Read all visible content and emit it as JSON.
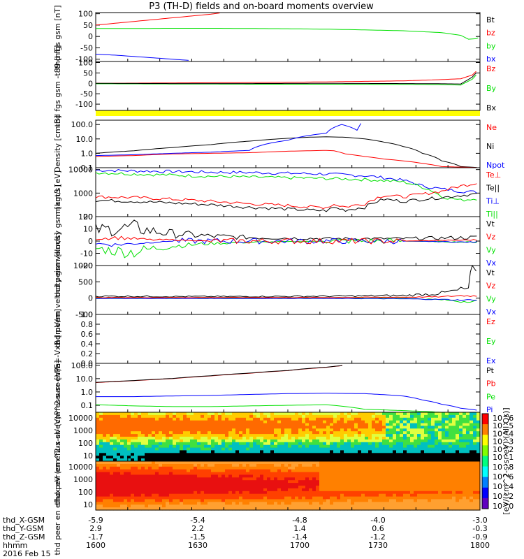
{
  "title": "P3 (TH-D) fields and on-board moments overview",
  "chart_data": [
    {
      "type": "line",
      "ylabel": "thd fgs gsm [nT]",
      "yticks": [
        "100",
        "50",
        "0",
        "-50",
        "-100"
      ],
      "legend": [
        {
          "label": "Bt",
          "color": "#000000"
        },
        {
          "label": "bz",
          "color": "#ff0000"
        },
        {
          "label": "by",
          "color": "#00e000"
        },
        {
          "label": "bx",
          "color": "#0000ff"
        }
      ],
      "ylim": [
        -110,
        105
      ],
      "series": [
        {
          "name": "bz",
          "color": "#ff0000",
          "x": [
            0,
            0.05,
            0.1,
            0.15,
            0.2,
            0.25,
            0.3,
            0.33
          ],
          "y": [
            50,
            58,
            66,
            74,
            82,
            90,
            98,
            105
          ]
        },
        {
          "name": "by",
          "color": "#00e000",
          "x": [
            0,
            0.1,
            0.2,
            0.3,
            0.4,
            0.5,
            0.6,
            0.7,
            0.8,
            0.9,
            0.95,
            0.97,
            0.99,
            1.0
          ],
          "y": [
            35,
            35,
            36,
            36,
            35,
            34,
            32,
            29,
            25,
            17,
            5,
            -12,
            -10,
            -2
          ]
        },
        {
          "name": "bx",
          "color": "#0000ff",
          "x": [
            0,
            0.05,
            0.1,
            0.15,
            0.2,
            0.25
          ],
          "y": [
            -78,
            -82,
            -88,
            -94,
            -100,
            -106
          ]
        }
      ]
    },
    {
      "type": "line",
      "ylabel": "thd fgs gsm -t89 [nT]",
      "yticks": [
        "100",
        "50",
        "0",
        "-50",
        "-100"
      ],
      "legend": [
        {
          "label": "Bz",
          "color": "#ff0000"
        },
        {
          "label": "By",
          "color": "#00e000"
        },
        {
          "label": "Bx",
          "color": "#000000"
        }
      ],
      "ylim": [
        -130,
        105
      ],
      "series": [
        {
          "name": "Bz",
          "color": "#ff0000",
          "x": [
            0,
            0.2,
            0.4,
            0.6,
            0.8,
            0.9,
            0.95,
            0.98,
            1.0
          ],
          "y": [
            0,
            2,
            4,
            7,
            12,
            18,
            22,
            40,
            75
          ]
        },
        {
          "name": "By",
          "color": "#00e000",
          "x": [
            0,
            0.2,
            0.4,
            0.6,
            0.8,
            0.9,
            0.95,
            0.98,
            1.0
          ],
          "y": [
            -2,
            -3,
            -4,
            -4,
            -5,
            -6,
            -8,
            20,
            60
          ]
        },
        {
          "name": "Bx",
          "color": "#000000",
          "x": [
            0,
            0.2,
            0.4,
            0.6,
            0.8,
            0.9,
            0.95,
            0.98,
            1.0
          ],
          "y": [
            0,
            -1,
            -1,
            0,
            -1,
            -2,
            -3,
            30,
            70
          ]
        }
      ]
    },
    {
      "type": "line",
      "ylabel": "Density [cm-3]",
      "scale": "log",
      "yticks": [
        "100.0",
        "10.0",
        "1.0",
        "0.1"
      ],
      "legend": [
        {
          "label": "Ne",
          "color": "#ff0000"
        },
        {
          "label": "Ni",
          "color": "#000000"
        },
        {
          "label": "Npot",
          "color": "#0000ff"
        }
      ],
      "ylim": [
        0.1,
        200
      ],
      "series": [
        {
          "name": "Ni",
          "color": "#000000",
          "x": [
            0,
            0.1,
            0.2,
            0.3,
            0.4,
            0.5,
            0.55,
            0.6,
            0.65,
            0.7,
            0.75,
            0.8,
            0.85,
            0.9,
            0.95,
            1.0
          ],
          "y": [
            1.0,
            1.5,
            2.5,
            4,
            7,
            11,
            13,
            14,
            13,
            10,
            6,
            3,
            1,
            0.3,
            0.12,
            0.1
          ]
        },
        {
          "name": "Ne",
          "color": "#ff0000",
          "x": [
            0,
            0.1,
            0.2,
            0.3,
            0.4,
            0.5,
            0.6,
            0.62,
            0.65,
            0.7,
            0.75,
            0.8,
            0.85,
            0.9,
            1.0
          ],
          "y": [
            0.6,
            0.7,
            0.9,
            1.0,
            1.1,
            1.4,
            1.6,
            1.5,
            0.9,
            0.6,
            0.4,
            0.3,
            0.2,
            0.12,
            0.1
          ]
        },
        {
          "name": "Npot",
          "color": "#0000ff",
          "x": [
            0,
            0.1,
            0.2,
            0.3,
            0.4,
            0.5,
            0.6,
            0.64,
            0.68,
            0.7
          ],
          "y": [
            0.7,
            0.8,
            1.0,
            1.2,
            1.6,
            8,
            25,
            100,
            40,
            200
          ]
        }
      ]
    },
    {
      "type": "line",
      "ylabel": "magt3 [eV]",
      "scale": "log",
      "yticks": [
        "10000",
        "1000",
        "100"
      ],
      "legend": [
        {
          "label": "Te⊥",
          "color": "#ff0000"
        },
        {
          "label": "Te||",
          "color": "#000000"
        },
        {
          "label": "Ti⊥",
          "color": "#0000ff"
        },
        {
          "label": "Ti||",
          "color": "#00e000"
        }
      ],
      "ylim": [
        100,
        12000
      ],
      "series": [
        {
          "name": "Ti⊥",
          "color": "#0000ff",
          "x": [
            0,
            0.1,
            0.2,
            0.3,
            0.4,
            0.5,
            0.6,
            0.7,
            0.75,
            0.8,
            0.85,
            0.9,
            0.95,
            1.0
          ],
          "y": [
            9500,
            8800,
            8300,
            7800,
            7500,
            7000,
            6500,
            5500,
            4500,
            3500,
            2000,
            1500,
            1200,
            1100
          ]
        },
        {
          "name": "Ti||",
          "color": "#00e000",
          "x": [
            0,
            0.1,
            0.2,
            0.3,
            0.4,
            0.5,
            0.6,
            0.7,
            0.75,
            0.8,
            0.85,
            0.9,
            0.95,
            1.0
          ],
          "y": [
            7500,
            6500,
            5800,
            5200,
            4800,
            4500,
            4200,
            3800,
            3400,
            3000,
            1800,
            700,
            500,
            600
          ]
        },
        {
          "name": "Te⊥",
          "color": "#ff0000",
          "x": [
            0,
            0.1,
            0.2,
            0.3,
            0.4,
            0.5,
            0.55,
            0.6,
            0.62,
            0.65,
            0.7,
            0.75,
            0.8,
            0.85,
            0.9,
            0.95,
            1.0
          ],
          "y": [
            700,
            650,
            550,
            450,
            350,
            300,
            260,
            250,
            330,
            260,
            350,
            800,
            700,
            900,
            1200,
            2000,
            2800
          ]
        },
        {
          "name": "Te||",
          "color": "#000000",
          "x": [
            0,
            0.1,
            0.2,
            0.3,
            0.4,
            0.5,
            0.55,
            0.6,
            0.62,
            0.65,
            0.7,
            0.75,
            0.8,
            0.85,
            0.9,
            0.95,
            1.0
          ],
          "y": [
            500,
            450,
            380,
            320,
            250,
            210,
            190,
            180,
            240,
            190,
            250,
            550,
            450,
            550,
            650,
            800,
            950
          ]
        }
      ]
    },
    {
      "type": "line",
      "ylabel": "thd peim velocity gsm [km/s]",
      "yticks": [
        "20",
        "10",
        "0",
        "-10",
        "-20"
      ],
      "legend": [
        {
          "label": "Vt",
          "color": "#000000"
        },
        {
          "label": "Vz",
          "color": "#ff0000"
        },
        {
          "label": "Vy",
          "color": "#00e000"
        },
        {
          "label": "Vx",
          "color": "#0000ff"
        }
      ],
      "ylim": [
        -20,
        20
      ],
      "series": [
        {
          "name": "Vt",
          "color": "#000000",
          "x": [
            0,
            0.05,
            0.1,
            0.15,
            0.2,
            0.3,
            0.4,
            0.6,
            0.8,
            1.0
          ],
          "y": [
            9,
            10,
            11,
            8,
            6,
            4,
            3,
            2,
            2,
            3
          ]
        },
        {
          "name": "Vy",
          "color": "#00e000",
          "x": [
            0,
            0.05,
            0.1,
            0.15,
            0.2,
            0.3,
            0.4,
            0.6,
            0.8,
            1.0
          ],
          "y": [
            -6,
            -8,
            -9,
            -6,
            -4,
            -2,
            -1,
            0,
            0,
            -1
          ]
        },
        {
          "name": "Vx",
          "color": "#0000ff",
          "x": [
            0,
            0.05,
            0.1,
            0.15,
            0.2,
            0.3,
            0.4,
            0.6,
            0.8,
            1.0
          ],
          "y": [
            -2,
            -3,
            -2,
            -1,
            0,
            0,
            0,
            0,
            0,
            -1
          ]
        },
        {
          "name": "Vz",
          "color": "#ff0000",
          "x": [
            0,
            0.05,
            0.1,
            0.15,
            0.2,
            0.3,
            0.4,
            0.6,
            0.8,
            1.0
          ],
          "y": [
            2,
            3,
            2,
            1,
            1,
            0,
            0,
            0,
            0,
            1
          ]
        }
      ]
    },
    {
      "type": "line",
      "ylabel": "thd peem velocity gsm [km/s]",
      "yticks": [
        "1000",
        "500",
        "0",
        "-500"
      ],
      "legend": [
        {
          "label": "Vt",
          "color": "#000000"
        },
        {
          "label": "Vz",
          "color": "#ff0000"
        },
        {
          "label": "Vy",
          "color": "#00e000"
        },
        {
          "label": "Vx",
          "color": "#0000ff"
        }
      ],
      "ylim": [
        -500,
        1000
      ],
      "series": [
        {
          "name": "Vt",
          "color": "#000000",
          "x": [
            0,
            0.2,
            0.4,
            0.6,
            0.8,
            0.9,
            0.95,
            0.97,
            0.98,
            1.0
          ],
          "y": [
            60,
            50,
            50,
            60,
            80,
            150,
            250,
            300,
            900,
            300
          ]
        },
        {
          "name": "Vy",
          "color": "#00e000",
          "x": [
            0,
            0.2,
            0.4,
            0.6,
            0.8,
            0.9,
            0.95,
            1.0
          ],
          "y": [
            10,
            10,
            0,
            0,
            0,
            -50,
            -100,
            -80
          ]
        },
        {
          "name": "Vz",
          "color": "#ff0000",
          "x": [
            0,
            0.2,
            0.4,
            0.6,
            0.8,
            0.9,
            0.95,
            1.0
          ],
          "y": [
            20,
            20,
            20,
            20,
            30,
            40,
            80,
            60
          ]
        },
        {
          "name": "Vx",
          "color": "#0000ff",
          "x": [
            0,
            0.2,
            0.4,
            0.6,
            0.8,
            0.9,
            0.95,
            1.0
          ],
          "y": [
            -10,
            -10,
            -10,
            -10,
            -20,
            -40,
            -60,
            -50
          ]
        }
      ]
    },
    {
      "type": "line",
      "ylabel": "E=-VxB [mV/m]",
      "yticks": [
        "1.0",
        "0.8",
        "0.6",
        "0.4",
        "0.2",
        "0.0"
      ],
      "legend": [
        {
          "label": "Ez",
          "color": "#ff0000"
        },
        {
          "label": "Ey",
          "color": "#00e000"
        },
        {
          "label": "Ex",
          "color": "#0000ff"
        }
      ],
      "ylim": [
        0,
        1
      ],
      "series": []
    },
    {
      "type": "line",
      "ylabel": "Pressure [nPa]",
      "scale": "log",
      "yticks": [
        "100.0",
        "10.0",
        "1.0",
        "0.1"
      ],
      "legend": [
        {
          "label": "Pt",
          "color": "#000000"
        },
        {
          "label": "Pb",
          "color": "#ff0000"
        },
        {
          "label": "Pe",
          "color": "#00e000"
        },
        {
          "label": "Pi",
          "color": "#0000ff"
        }
      ],
      "ylim": [
        0.03,
        140
      ],
      "series": [
        {
          "name": "Pb",
          "color": "#ff0000",
          "x": [
            0,
            0.1,
            0.2,
            0.3,
            0.4,
            0.5,
            0.6,
            0.65
          ],
          "y": [
            5,
            7,
            10,
            16,
            25,
            40,
            70,
            100
          ]
        },
        {
          "name": "Pt",
          "color": "#000000",
          "x": [
            0,
            0.1,
            0.2,
            0.3,
            0.4,
            0.5,
            0.6,
            0.65
          ],
          "y": [
            5.2,
            7.2,
            10.3,
            16.5,
            26,
            41,
            72,
            100
          ]
        },
        {
          "name": "Pi",
          "color": "#0000ff",
          "x": [
            0,
            0.1,
            0.2,
            0.3,
            0.4,
            0.5,
            0.6,
            0.7,
            0.8,
            0.85,
            0.9,
            0.95,
            1.0
          ],
          "y": [
            0.45,
            0.45,
            0.5,
            0.55,
            0.65,
            0.75,
            0.8,
            0.75,
            0.5,
            0.25,
            0.12,
            0.06,
            0.04
          ]
        },
        {
          "name": "Pe",
          "color": "#00e000",
          "x": [
            0,
            0.1,
            0.2,
            0.3,
            0.4,
            0.5,
            0.6,
            0.65,
            0.7,
            0.8,
            0.9,
            1.0
          ],
          "y": [
            0.11,
            0.09,
            0.08,
            0.08,
            0.09,
            0.1,
            0.11,
            0.08,
            0.05,
            0.04,
            0.03,
            0.03
          ]
        }
      ]
    },
    {
      "type": "heatmap",
      "ylabel": "thd peir en eflux eV (cm^2-s-sr-eV)",
      "yticks": [
        "10000",
        "1000",
        "100",
        "10"
      ],
      "colorbar_ticks": [
        "10^6",
        "10^5",
        "10^4",
        "10^3",
        "10^2",
        "10^1"
      ]
    },
    {
      "type": "heatmap",
      "ylabel": "thd peer en eflux eV (cm^2-s-sr-eV)",
      "yticks": [
        "10000",
        "1000",
        "100",
        "10"
      ],
      "colorbar_ticks": [
        "10^8",
        "10^6",
        "10^4",
        "10^2",
        "10^0"
      ]
    }
  ],
  "colorbar_label": "[eV/(cm^2-s-sr-eV) (All Qs)]",
  "footer": {
    "rows": [
      {
        "label": "thd_X-GSM",
        "values": [
          "-5.9",
          "-5.4",
          "-4.8",
          "-4.0",
          "-3.0"
        ]
      },
      {
        "label": "thd_Y-GSM",
        "values": [
          "2.9",
          "2.2",
          "1.4",
          "0.6",
          "-0.3"
        ]
      },
      {
        "label": "thd_Z-GSM",
        "values": [
          "-1.7",
          "-1.5",
          "-1.4",
          "-1.2",
          "-0.9"
        ]
      },
      {
        "label": "hhmm",
        "values": [
          "1600",
          "1630",
          "1700",
          "1730",
          "1800"
        ]
      }
    ],
    "date": "2016 Feb 15"
  }
}
